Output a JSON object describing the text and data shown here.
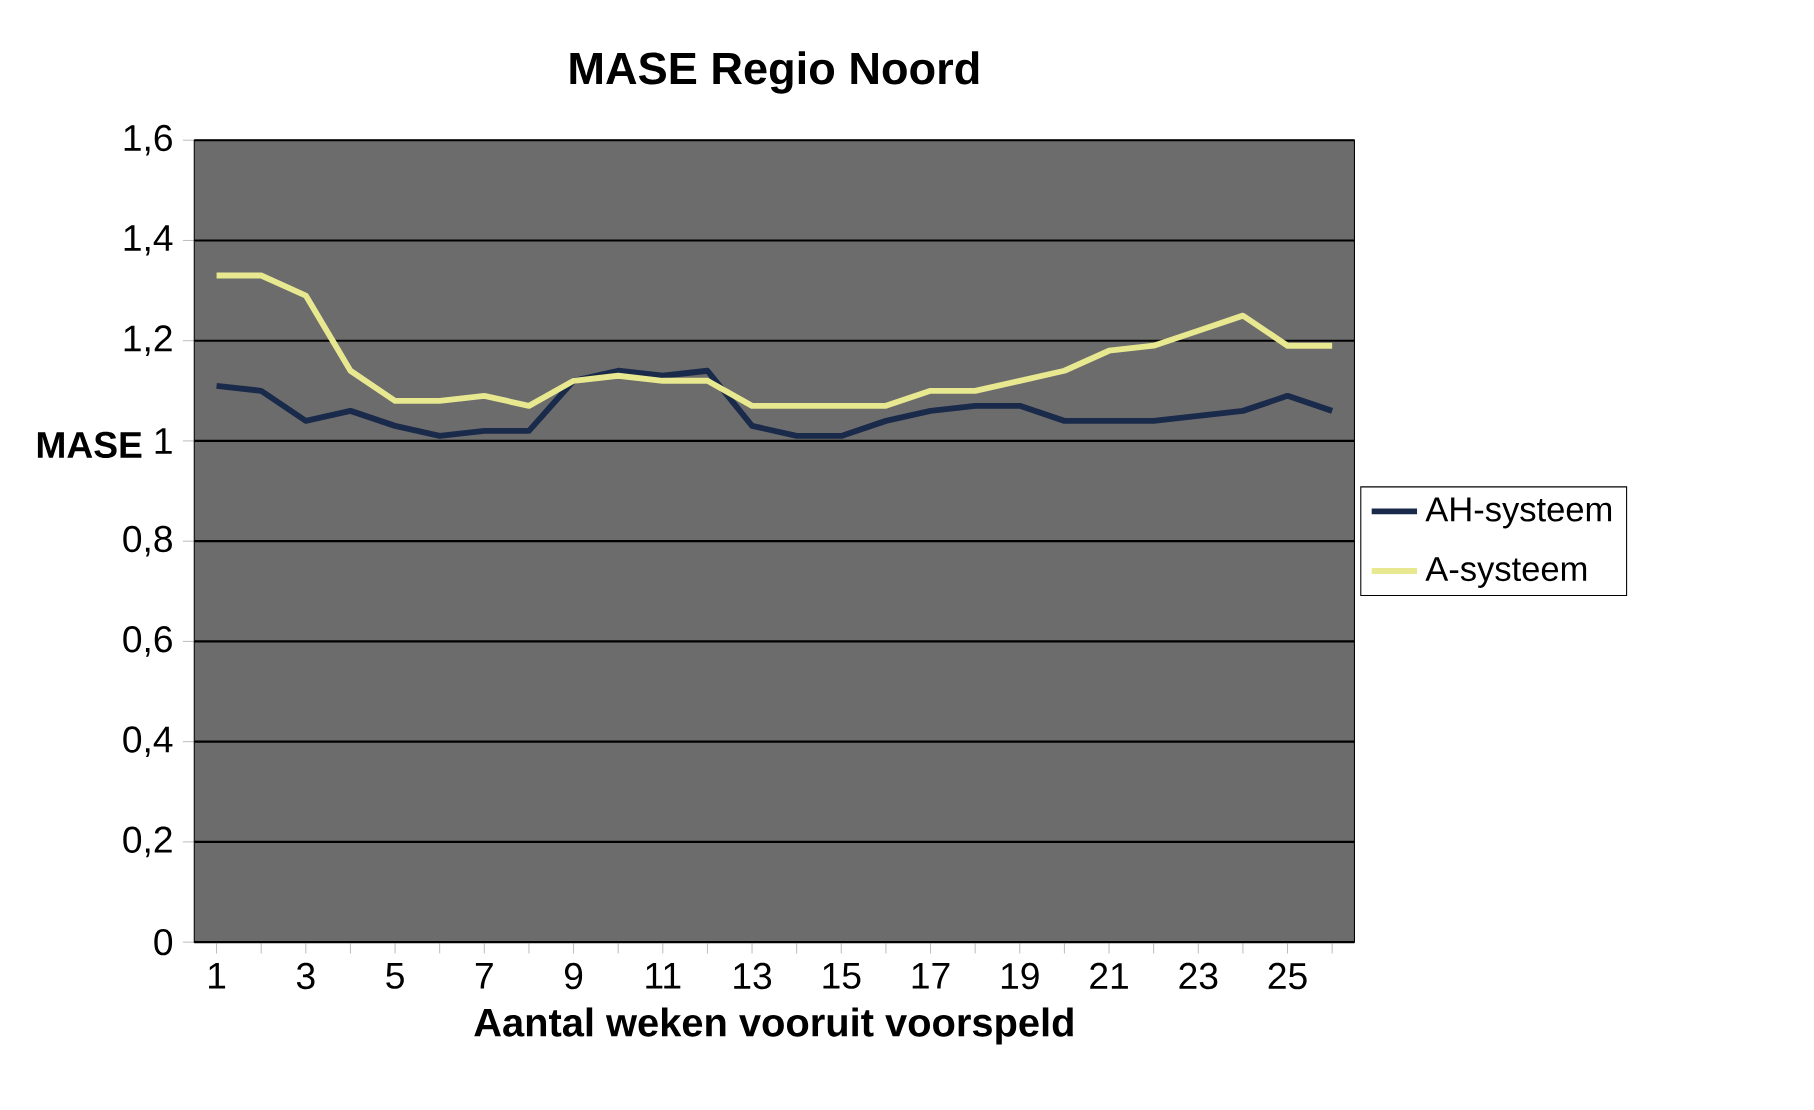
{
  "chart_data": {
    "type": "line",
    "title": "MASE Regio Noord",
    "xlabel": "Aantal weken vooruit voorspeld",
    "ylabel": "MASE",
    "categories": [
      "1",
      null,
      "3",
      null,
      "5",
      null,
      "7",
      null,
      "9",
      null,
      "11",
      null,
      "13",
      null,
      "15",
      null,
      "17",
      null,
      "19",
      null,
      "21",
      null,
      "23",
      null,
      "25",
      null
    ],
    "series": [
      {
        "name": "AH-systeem",
        "color": "#1a2a4a",
        "values": [
          1.11,
          1.1,
          1.04,
          1.06,
          1.03,
          1.01,
          1.02,
          1.02,
          1.12,
          1.14,
          1.13,
          1.14,
          1.03,
          1.01,
          1.01,
          1.04,
          1.06,
          1.07,
          1.07,
          1.04,
          1.04,
          1.04,
          1.05,
          1.06,
          1.09,
          1.06
        ]
      },
      {
        "name": "A-systeem",
        "color": "#e8e890",
        "values": [
          1.33,
          1.33,
          1.29,
          1.14,
          1.08,
          1.08,
          1.09,
          1.07,
          1.12,
          1.13,
          1.12,
          1.12,
          1.07,
          1.07,
          1.07,
          1.07,
          1.1,
          1.1,
          1.12,
          1.14,
          1.18,
          1.19,
          1.22,
          1.25,
          1.19,
          1.19
        ]
      }
    ],
    "ylim": [
      0,
      1.6
    ],
    "yticks": [
      0,
      {
        "value": 0.2,
        "label": "0,2"
      },
      {
        "value": 0.4,
        "label": "0,4"
      },
      {
        "value": 0.6,
        "label": "0,6"
      },
      {
        "value": 0.8,
        "label": "0,8"
      },
      1,
      {
        "value": 1.2,
        "label": "1,2"
      },
      {
        "value": 1.4,
        "label": "1,4"
      },
      {
        "value": 1.6,
        "label": "1,6"
      }
    ],
    "grid": "y",
    "legend": "right",
    "marker": "none",
    "line_style": "solid"
  }
}
